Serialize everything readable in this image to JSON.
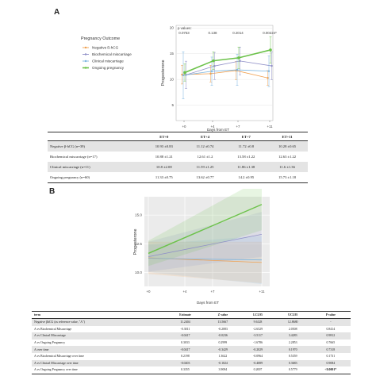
{
  "panel_a_letter": "A",
  "panel_b_letter": "B",
  "chart_data": [
    {
      "type": "line",
      "legend_title": "Pregnancy Outcome",
      "legend_position": "left",
      "xlabel": "Days from ET",
      "ylabel": "Progesterone",
      "x_ticks": [
        "+0",
        "+4",
        "+7",
        "+11"
      ],
      "y_ticks": [
        "5",
        "10",
        "15",
        "20"
      ],
      "ylim": [
        2,
        20.5
      ],
      "p_label": "p values:",
      "p_values": [
        "0.0753",
        "0.138",
        "0.2014",
        "0.00224*"
      ],
      "series": [
        {
          "name": "Negative ß-hCG",
          "color": "#f0a050",
          "values": [
            10.93,
            11.12,
            11.72,
            10.28
          ],
          "errors": [
            0.83,
            0.74,
            0.8,
            0.65
          ]
        },
        {
          "name": "Biochemical miscarriage",
          "color": "#9090c8",
          "values": [
            10.88,
            12.61,
            13.58,
            12.63
          ],
          "errors": [
            1.21,
            1.2,
            1.22,
            1.22
          ]
        },
        {
          "name": "Clinical miscarriage",
          "color": "#7ab4e0",
          "values": [
            10.8,
            11.59,
            11.86,
            11.6
          ],
          "errors": [
            2.08,
            1.25,
            1.38,
            1.36
          ]
        },
        {
          "name": "Ongoing pregnancy",
          "color": "#6cc24a",
          "values": [
            11.33,
            13.62,
            14.2,
            15.73
          ],
          "errors": [
            0.75,
            0.77,
            0.95,
            1.18
          ]
        }
      ]
    },
    {
      "type": "line",
      "xlabel": "Days from ET",
      "ylabel": "Progesterone",
      "x_ticks": [
        "+0",
        "+4",
        "+7",
        "+11"
      ],
      "y_ticks": [
        "10.0",
        "12.5",
        "15.0"
      ],
      "ylim": [
        8.8,
        16.6
      ],
      "grid": true,
      "series": [
        {
          "color": "#f0a050",
          "start": 11.28,
          "end": 10.88
        },
        {
          "color": "#9090c8",
          "start": 11.38,
          "end": 13.33
        },
        {
          "color": "#7ab4e0",
          "start": 11.24,
          "end": 11.1
        },
        {
          "color": "#6cc24a",
          "start": 11.67,
          "end": 15.93
        }
      ]
    }
  ],
  "table_a": {
    "headers": [
      "",
      "ET+0",
      "ET+4",
      "ET+7",
      "ET+11"
    ],
    "rows": [
      [
        "Negative β-hCG (n=39)",
        "10.93 ±0.83",
        "11.12 ±0.74",
        "11.72 ±0.8",
        "10.28 ±0.65"
      ],
      [
        "Biochemical miscarriage (n=17)",
        "10.88 ±1.21",
        "12.61 ±1.2",
        "13.58 ±1.22",
        "12.63 ±1.22"
      ],
      [
        "Clinical miscarriage (n=11)",
        "10.8 ±2.08",
        "11.59 ±1.25",
        "11.86 ±1.38",
        "11.6 ±1.36"
      ],
      [
        "Ongoing pregnancy (n=60)",
        "11.33 ±0.75",
        "13.62 ±0.77",
        "14.2 ±0.95",
        "15.73 ±1.18"
      ]
    ]
  },
  "table_b": {
    "headers": [
      "term",
      "Estimate",
      "Z value",
      "LCL95",
      "UCL95",
      "P value"
    ],
    "rows": [
      [
        "Negative βhCG (as reference value, \"A\")",
        "11.2404",
        "13.5667",
        "9.6128",
        "12.8680",
        "-"
      ],
      [
        "A vs Biochemical Miscarriage",
        "-0.3011",
        "-0.2083",
        "-2.6529",
        "2.0508",
        "0.8414"
      ],
      [
        "A vs Clinical Miscarriage",
        "-0.0417",
        "-0.0236",
        "-3.5117",
        "3.4283",
        "0.9812"
      ],
      [
        "A vs Ongoing Pregnancy",
        "0.3033",
        "0.2999",
        "-1.6786",
        "2.2853",
        "0.7665"
      ],
      [
        "A over time",
        "-0.0417",
        "-0.3429",
        "-0.2029",
        "0.1970",
        "0.7318"
      ],
      [
        "A vs Biochemical Miscarriage over time",
        "0.2198",
        "1.3622",
        "-0.0964",
        "0.5359",
        "0.1731"
      ],
      [
        "A vs Clinical Miscarriage over time",
        "-0.0203",
        "-0.1024",
        "-0.4089",
        "0.3683",
        "0.9084"
      ],
      [
        "A vs Ongoing Pregnancy over time",
        "0.3355",
        "3.9084",
        "0.2007",
        "0.5779",
        "<0.0001*"
      ]
    ]
  }
}
